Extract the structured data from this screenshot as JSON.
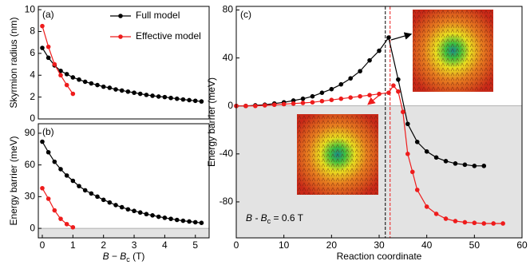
{
  "chart_data": [
    {
      "type": "line",
      "panel_label": "(a)",
      "ylabel": "Skyrmion radius (nm)",
      "xlim": [
        -0.13,
        5.45
      ],
      "ylim": [
        0,
        10.3
      ],
      "yticks": [
        0,
        2,
        4,
        6,
        8,
        10
      ],
      "legend": "top-center",
      "series": [
        {
          "name": "Full model",
          "color": "#000000",
          "x": [
            0,
            0.2,
            0.4,
            0.6,
            0.8,
            1.0,
            1.2,
            1.4,
            1.6,
            1.8,
            2.0,
            2.2,
            2.4,
            2.6,
            2.8,
            3.0,
            3.2,
            3.4,
            3.6,
            3.8,
            4.0,
            4.2,
            4.4,
            4.6,
            4.8,
            5.0,
            5.2
          ],
          "values": [
            6.5,
            5.6,
            4.9,
            4.4,
            4.1,
            3.8,
            3.6,
            3.4,
            3.25,
            3.1,
            2.95,
            2.85,
            2.7,
            2.6,
            2.5,
            2.4,
            2.3,
            2.2,
            2.12,
            2.05,
            2.0,
            1.92,
            1.85,
            1.78,
            1.72,
            1.66,
            1.6
          ]
        },
        {
          "name": "Effective model",
          "color": "#ee1c1c",
          "x": [
            0,
            0.2,
            0.4,
            0.6,
            0.8,
            1.0
          ],
          "values": [
            8.5,
            6.6,
            5.0,
            4.0,
            3.1,
            2.3
          ]
        }
      ]
    },
    {
      "type": "line",
      "panel_label": "(b)",
      "ylabel": "Energy barrier (meV)",
      "xlabel": [
        "B − B",
        "c",
        " (T)"
      ],
      "xlim": [
        -0.13,
        5.45
      ],
      "ylim": [
        -9,
        99
      ],
      "xticks": [
        0,
        1,
        2,
        3,
        4,
        5
      ],
      "yticks": [
        0,
        30,
        60,
        90
      ],
      "shade_below_zero": true,
      "series": [
        {
          "name": "Full model",
          "color": "#000000",
          "x": [
            0,
            0.2,
            0.4,
            0.6,
            0.8,
            1.0,
            1.2,
            1.4,
            1.6,
            1.8,
            2.0,
            2.2,
            2.4,
            2.6,
            2.8,
            3.0,
            3.2,
            3.4,
            3.6,
            3.8,
            4.0,
            4.2,
            4.4,
            4.6,
            4.8,
            5.0,
            5.2
          ],
          "values": [
            82,
            72,
            63,
            56,
            50,
            45,
            40,
            36,
            33,
            30,
            27,
            24.5,
            22,
            20,
            18,
            16.5,
            15,
            13.5,
            12.3,
            11,
            10,
            9,
            8,
            7.2,
            6.5,
            5.8,
            5.2
          ]
        },
        {
          "name": "Effective model",
          "color": "#ee1c1c",
          "x": [
            0,
            0.2,
            0.4,
            0.6,
            0.8,
            1.0
          ],
          "values": [
            38,
            28,
            17,
            9,
            4,
            1
          ]
        }
      ]
    },
    {
      "type": "line",
      "panel_label": "(c)",
      "ylabel": "Energy barrier (meV)",
      "xlabel": "Reaction coordinate",
      "annotation": [
        "B - B",
        "c",
        " = 0.6 T"
      ],
      "xlim": [
        0,
        60
      ],
      "ylim": [
        -110,
        83
      ],
      "xticks": [
        0,
        10,
        20,
        30,
        40,
        50,
        60
      ],
      "yticks": [
        -80,
        -40,
        0,
        40,
        80
      ],
      "shade_below_zero": true,
      "vlines": [
        {
          "x": 31.3,
          "color": "#000000"
        },
        {
          "x": 32.3,
          "color": "#ee1c1c"
        }
      ],
      "series": [
        {
          "name": "Full model",
          "color": "#000000",
          "x": [
            0,
            2,
            4,
            6,
            8,
            10,
            12,
            14,
            16,
            18,
            20,
            22,
            24,
            26,
            28,
            30,
            32,
            34,
            36,
            38,
            40,
            42,
            44,
            46,
            48,
            50,
            52
          ],
          "values": [
            0,
            0,
            0.5,
            1,
            2,
            3,
            4.5,
            6,
            8,
            11,
            14,
            18,
            23,
            29,
            38,
            46,
            57,
            22,
            -15,
            -30,
            -38,
            -43,
            -46,
            -48,
            -49,
            -50,
            -50
          ]
        },
        {
          "name": "Effective model",
          "color": "#ee1c1c",
          "x": [
            0,
            2,
            4,
            6,
            8,
            10,
            12,
            14,
            16,
            18,
            20,
            22,
            24,
            26,
            28,
            30,
            32,
            33,
            34,
            35,
            36,
            37,
            38,
            40,
            42,
            44,
            46,
            48,
            50,
            52,
            54,
            56
          ],
          "values": [
            0,
            0,
            0,
            0.5,
            1,
            1.5,
            2,
            2.5,
            3,
            4,
            5,
            6,
            7,
            8,
            9,
            10,
            11,
            17,
            12,
            -5,
            -40,
            -55,
            -70,
            -84,
            -90,
            -94,
            -96,
            -97,
            -97.5,
            -98,
            -98,
            -98
          ]
        }
      ]
    }
  ]
}
